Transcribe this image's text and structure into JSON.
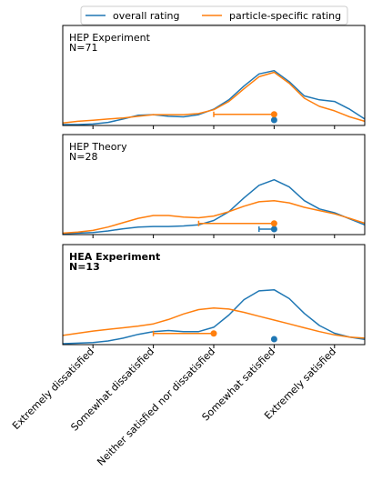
{
  "chart_data": {
    "type": "line",
    "description_type": "kde-density-with-markers",
    "x_categories": [
      "Extremely dissatisfied",
      "Somewhat dissatisfied",
      "Neither satisfied nor dissatisfied",
      "Somewhat satisfied",
      "Extremely satisfied"
    ],
    "xlim": [
      -0.5,
      4.5
    ],
    "legend": {
      "placement": "top-center",
      "entries": [
        {
          "name": "overall rating",
          "color": "#1f77b4"
        },
        {
          "name": "particle-specific rating",
          "color": "#ff7f0e"
        }
      ]
    },
    "panels": [
      {
        "title_line1": "HEP Experiment",
        "title_line2": "N=71",
        "bold": false,
        "series": [
          {
            "name": "overall rating",
            "color": "#1f77b4",
            "x": [
              -0.5,
              -0.25,
              0,
              0.25,
              0.5,
              0.75,
              1,
              1.25,
              1.5,
              1.75,
              2,
              2.25,
              2.5,
              2.75,
              3,
              3.25,
              3.5,
              3.75,
              4,
              4.25,
              4.5
            ],
            "y": [
              0,
              0,
              0.01,
              0.04,
              0.1,
              0.17,
              0.18,
              0.15,
              0.14,
              0.18,
              0.28,
              0.45,
              0.7,
              0.92,
              0.98,
              0.78,
              0.52,
              0.45,
              0.42,
              0.28,
              0.1
            ]
          },
          {
            "name": "particle-specific rating",
            "color": "#ff7f0e",
            "x": [
              -0.5,
              -0.25,
              0,
              0.25,
              0.5,
              0.75,
              1,
              1.25,
              1.5,
              1.75,
              2,
              2.25,
              2.5,
              2.75,
              3,
              3.25,
              3.5,
              3.75,
              4,
              4.25,
              4.5
            ],
            "y": [
              0.03,
              0.06,
              0.08,
              0.1,
              0.12,
              0.15,
              0.18,
              0.18,
              0.18,
              0.2,
              0.27,
              0.42,
              0.65,
              0.87,
              0.95,
              0.75,
              0.48,
              0.33,
              0.25,
              0.14,
              0.06
            ]
          }
        ],
        "markers": [
          {
            "series": "overall rating",
            "color": "#1f77b4",
            "x": 3.0,
            "err_low": 3.0,
            "err_high": 3.0,
            "level": 0.06
          },
          {
            "series": "particle-specific rating",
            "color": "#ff7f0e",
            "x": 3.0,
            "err_low": 2.0,
            "err_high": 3.0,
            "level": 0.25
          }
        ]
      },
      {
        "title_line1": "HEP Theory",
        "title_line2": "N=28",
        "bold": false,
        "series": [
          {
            "name": "overall rating",
            "color": "#1f77b4",
            "x": [
              -0.5,
              -0.25,
              0,
              0.25,
              0.5,
              0.75,
              1,
              1.25,
              1.5,
              1.75,
              2,
              2.25,
              2.5,
              2.75,
              3,
              3.25,
              3.5,
              3.75,
              4,
              4.25,
              4.5
            ],
            "y": [
              0,
              0.01,
              0.02,
              0.05,
              0.09,
              0.12,
              0.13,
              0.13,
              0.14,
              0.16,
              0.24,
              0.4,
              0.65,
              0.88,
              0.98,
              0.85,
              0.6,
              0.45,
              0.38,
              0.27,
              0.16
            ]
          },
          {
            "name": "particle-specific rating",
            "color": "#ff7f0e",
            "x": [
              -0.5,
              -0.25,
              0,
              0.25,
              0.5,
              0.75,
              1,
              1.25,
              1.5,
              1.75,
              2,
              2.25,
              2.5,
              2.75,
              3,
              3.25,
              3.5,
              3.75,
              4,
              4.25,
              4.5
            ],
            "y": [
              0.01,
              0.03,
              0.06,
              0.12,
              0.2,
              0.28,
              0.33,
              0.33,
              0.3,
              0.29,
              0.32,
              0.4,
              0.5,
              0.58,
              0.6,
              0.56,
              0.48,
              0.42,
              0.36,
              0.28,
              0.19
            ]
          }
        ],
        "markers": [
          {
            "series": "overall rating",
            "color": "#1f77b4",
            "x": 3.0,
            "err_low": 2.75,
            "err_high": 3.0,
            "level": 0.06
          },
          {
            "series": "particle-specific rating",
            "color": "#ff7f0e",
            "x": 3.0,
            "err_low": 1.75,
            "err_high": 3.0,
            "level": 0.25
          }
        ]
      },
      {
        "title_line1": "HEA Experiment",
        "title_line2": "N=13",
        "bold": true,
        "series": [
          {
            "name": "overall rating",
            "color": "#1f77b4",
            "x": [
              -0.5,
              -0.25,
              0,
              0.25,
              0.5,
              0.75,
              1,
              1.25,
              1.5,
              1.75,
              2,
              2.25,
              2.5,
              2.75,
              3,
              3.25,
              3.5,
              3.75,
              4,
              4.25,
              4.5
            ],
            "y": [
              0,
              0.01,
              0.02,
              0.05,
              0.1,
              0.17,
              0.22,
              0.24,
              0.22,
              0.22,
              0.3,
              0.52,
              0.8,
              0.96,
              0.98,
              0.82,
              0.55,
              0.33,
              0.19,
              0.12,
              0.08
            ]
          },
          {
            "name": "particle-specific rating",
            "color": "#ff7f0e",
            "x": [
              -0.5,
              -0.25,
              0,
              0.25,
              0.5,
              0.75,
              1,
              1.25,
              1.5,
              1.75,
              2,
              2.25,
              2.5,
              2.75,
              3,
              3.25,
              3.5,
              3.75,
              4,
              4.25,
              4.5
            ],
            "y": [
              0.15,
              0.19,
              0.23,
              0.26,
              0.29,
              0.32,
              0.36,
              0.44,
              0.54,
              0.62,
              0.65,
              0.63,
              0.57,
              0.5,
              0.43,
              0.36,
              0.29,
              0.22,
              0.16,
              0.12,
              0.1
            ]
          }
        ],
        "markers": [
          {
            "series": "overall rating",
            "color": "#1f77b4",
            "x": 3.0,
            "err_low": 3.0,
            "err_high": 3.0,
            "level": 0.06
          },
          {
            "series": "particle-specific rating",
            "color": "#ff7f0e",
            "x": 2.0,
            "err_low": 1.0,
            "err_high": 2.0,
            "level": 0.25
          }
        ]
      }
    ]
  }
}
